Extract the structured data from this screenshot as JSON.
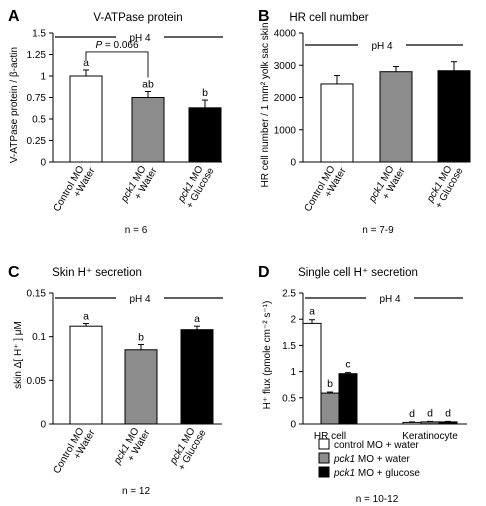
{
  "chart_data": [
    {
      "panel": "A",
      "type": "bar",
      "title": "V-ATPase protein",
      "ylabel": "V-ATPase protein / β-actin",
      "ylim": [
        0,
        1.5
      ],
      "yticks": [
        "0",
        "0.25",
        "0.5",
        "0.75",
        "1",
        "1.25",
        "1.5"
      ],
      "condition": "pH 4",
      "categories": [
        {
          "line1a": "Control MO",
          "line1b": "",
          "line2": "+Water"
        },
        {
          "line1a": "pck1",
          "line1b": " MO",
          "line2": "+ Water"
        },
        {
          "line1a": "pck1",
          "line1b": " MO",
          "line2": "+ Glucose"
        }
      ],
      "values": [
        1.0,
        0.75,
        0.63
      ],
      "errors": [
        0.07,
        0.07,
        0.09
      ],
      "fills": [
        "#ffffff",
        "#8c8c8c",
        "#000000"
      ],
      "letters": [
        "a",
        "ab",
        "b"
      ],
      "comparison": "P = 0.066",
      "n": "n = 6"
    },
    {
      "panel": "B",
      "type": "bar",
      "title": "HR cell number",
      "ylabel": "HR cell number / 1 mm² yolk sac skin",
      "ylim": [
        0,
        4000
      ],
      "yticks": [
        "0",
        "1000",
        "2000",
        "3000",
        "4000"
      ],
      "condition": "pH 4",
      "categories": [
        {
          "line1a": "Control MO",
          "line1b": "",
          "line2": "+Water"
        },
        {
          "line1a": "pck1",
          "line1b": " MO",
          "line2": "+ Water"
        },
        {
          "line1a": "pck1",
          "line1b": " MO",
          "line2": "+ Glucose"
        }
      ],
      "values": [
        2420,
        2800,
        2830
      ],
      "errors": [
        260,
        160,
        280
      ],
      "fills": [
        "#ffffff",
        "#8c8c8c",
        "#000000"
      ],
      "letters": [
        "",
        "",
        ""
      ],
      "n": "n = 7-9"
    },
    {
      "panel": "C",
      "type": "bar",
      "title": "Skin H⁺ secretion",
      "ylabel": "skin Δ[ H⁺ ] μM",
      "ylim": [
        0,
        0.15
      ],
      "yticks": [
        "0",
        "0.05",
        "0.1",
        "0.15"
      ],
      "condition": "pH 4",
      "categories": [
        {
          "line1a": "Control MO",
          "line1b": "",
          "line2": "+Water"
        },
        {
          "line1a": "pck1",
          "line1b": " MO",
          "line2": "+ Water"
        },
        {
          "line1a": "pck1",
          "line1b": " MO",
          "line2": "+ Glucose"
        }
      ],
      "values": [
        0.112,
        0.085,
        0.108
      ],
      "errors": [
        0.003,
        0.006,
        0.004
      ],
      "fills": [
        "#ffffff",
        "#8c8c8c",
        "#000000"
      ],
      "letters": [
        "a",
        "b",
        "a"
      ],
      "n": "n = 12"
    },
    {
      "panel": "D",
      "type": "bar",
      "title": "Single cell H⁺ secretion",
      "ylabel": "H⁺ flux (pmole cm⁻² s⁻¹)",
      "ylim": [
        0,
        2.5
      ],
      "yticks": [
        "0",
        "0.5",
        "1",
        "1.5",
        "2",
        "2.5"
      ],
      "condition": "pH 4",
      "categories": [
        "HR cell",
        "Keratinocyte"
      ],
      "series": [
        {
          "values": [
            1.92,
            0.03
          ],
          "errors": [
            0.07,
            0.01
          ],
          "fill": "#ffffff",
          "letters": [
            "a",
            "d"
          ]
        },
        {
          "values": [
            0.59,
            0.04
          ],
          "errors": [
            0.02,
            0.01
          ],
          "fill": "#8c8c8c",
          "letters": [
            "b",
            "d"
          ]
        },
        {
          "values": [
            0.96,
            0.04
          ],
          "errors": [
            0.02,
            0.01
          ],
          "fill": "#000000",
          "letters": [
            "c",
            "d"
          ]
        }
      ],
      "legend": [
        {
          "a": "control MO + water",
          "b": ""
        },
        {
          "a": "pck1",
          "b": " MO + water"
        },
        {
          "a": "pck1",
          "b": " MO + glucose"
        }
      ],
      "n": "n = 10-12"
    }
  ]
}
